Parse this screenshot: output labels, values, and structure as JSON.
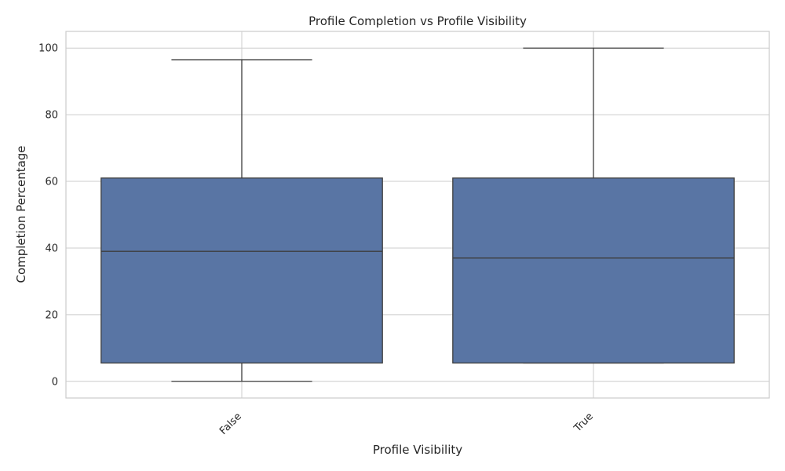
{
  "chart_data": {
    "type": "box",
    "title": "Profile Completion vs Profile Visibility",
    "xlabel": "Profile Visibility",
    "ylabel": "Completion Percentage",
    "categories": [
      "False",
      "True"
    ],
    "boxes": [
      {
        "category": "False",
        "whisker_low": 0,
        "q1": 5.5,
        "median": 39,
        "q3": 61,
        "whisker_high": 96.5
      },
      {
        "category": "True",
        "whisker_low": 5.5,
        "q1": 5.5,
        "median": 37,
        "q3": 61,
        "whisker_high": 100
      }
    ],
    "ylim": [
      -5,
      105
    ],
    "yticks": [
      0,
      20,
      40,
      60,
      80,
      100
    ],
    "grid": true,
    "box_color": "#5975a4",
    "line_color": "#3d3d3d"
  }
}
